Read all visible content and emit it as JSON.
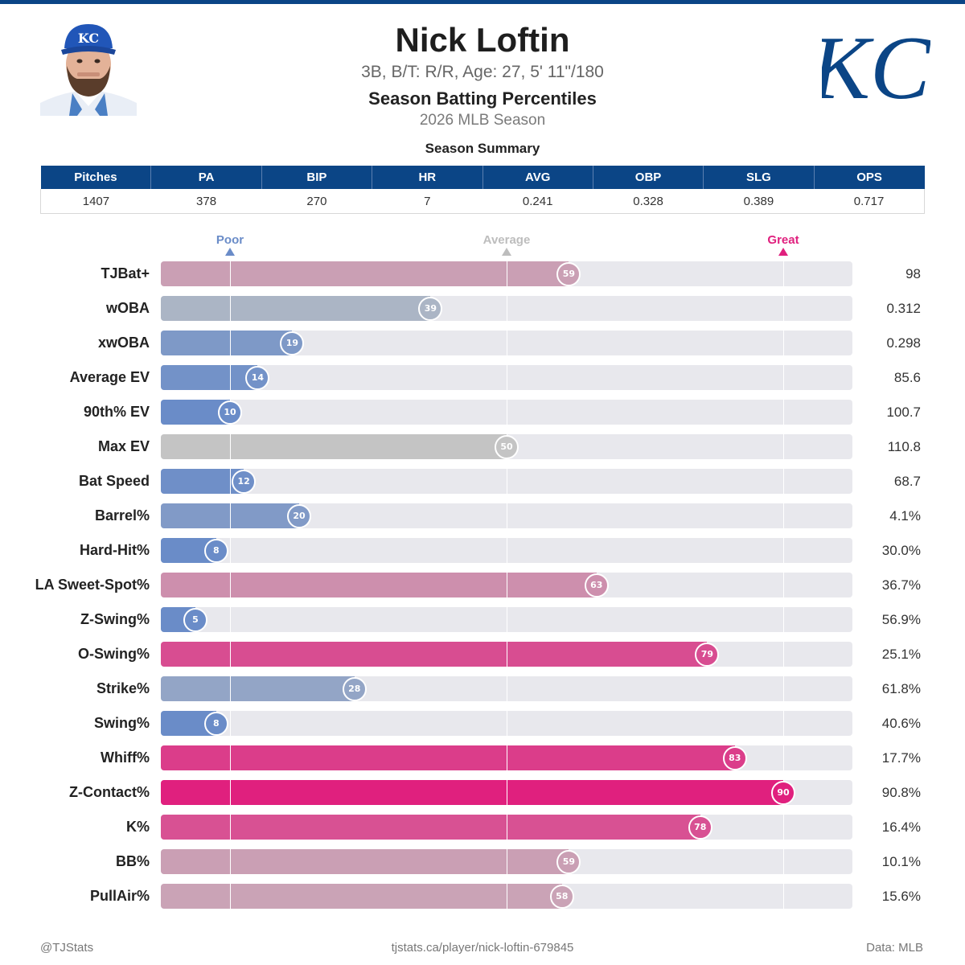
{
  "colors": {
    "brand_navy": "#0b4586",
    "poor": "#6a8cc8",
    "average": "#c4c4c4",
    "great": "#e0207e",
    "track": "#e8e8ed"
  },
  "player": {
    "name": "Nick Loftin",
    "bio": "3B, B/T: R/R, Age: 27, 5' 11\"/180",
    "team_logo_text": "KC",
    "cap_logo_text": "KC"
  },
  "title": "Season Batting Percentiles",
  "season": "2026 MLB Season",
  "summary": {
    "title": "Season Summary",
    "headers": [
      "Pitches",
      "PA",
      "BIP",
      "HR",
      "AVG",
      "OBP",
      "SLG",
      "OPS"
    ],
    "values": [
      "1407",
      "378",
      "270",
      "7",
      "0.241",
      "0.328",
      "0.389",
      "0.717"
    ]
  },
  "scale_labels": {
    "poor": "Poor",
    "average": "Average",
    "great": "Great"
  },
  "chart_data": {
    "type": "bar",
    "orientation": "horizontal",
    "xlim": [
      0,
      100
    ],
    "reference_lines": [
      10,
      50,
      90
    ],
    "categories": [
      "TJBat+",
      "wOBA",
      "xwOBA",
      "Average EV",
      "90th% EV",
      "Max EV",
      "Bat Speed",
      "Barrel%",
      "Hard-Hit%",
      "LA Sweet-Spot%",
      "Z-Swing%",
      "O-Swing%",
      "Strike%",
      "Swing%",
      "Whiff%",
      "Z-Contact%",
      "K%",
      "BB%",
      "PullAir%"
    ],
    "percentiles": [
      59,
      39,
      19,
      14,
      10,
      50,
      12,
      20,
      8,
      63,
      5,
      79,
      28,
      8,
      83,
      90,
      78,
      59,
      58
    ],
    "stat_values": [
      "98",
      "0.312",
      "0.298",
      "85.6",
      "100.7",
      "110.8",
      "68.7",
      "4.1%",
      "30.0%",
      "36.7%",
      "56.9%",
      "25.1%",
      "61.8%",
      "40.6%",
      "17.7%",
      "90.8%",
      "16.4%",
      "10.1%",
      "15.6%"
    ]
  },
  "footer": {
    "left": "@TJStats",
    "center": "tjstats.ca/player/nick-loftin-679845",
    "right": "Data: MLB"
  }
}
